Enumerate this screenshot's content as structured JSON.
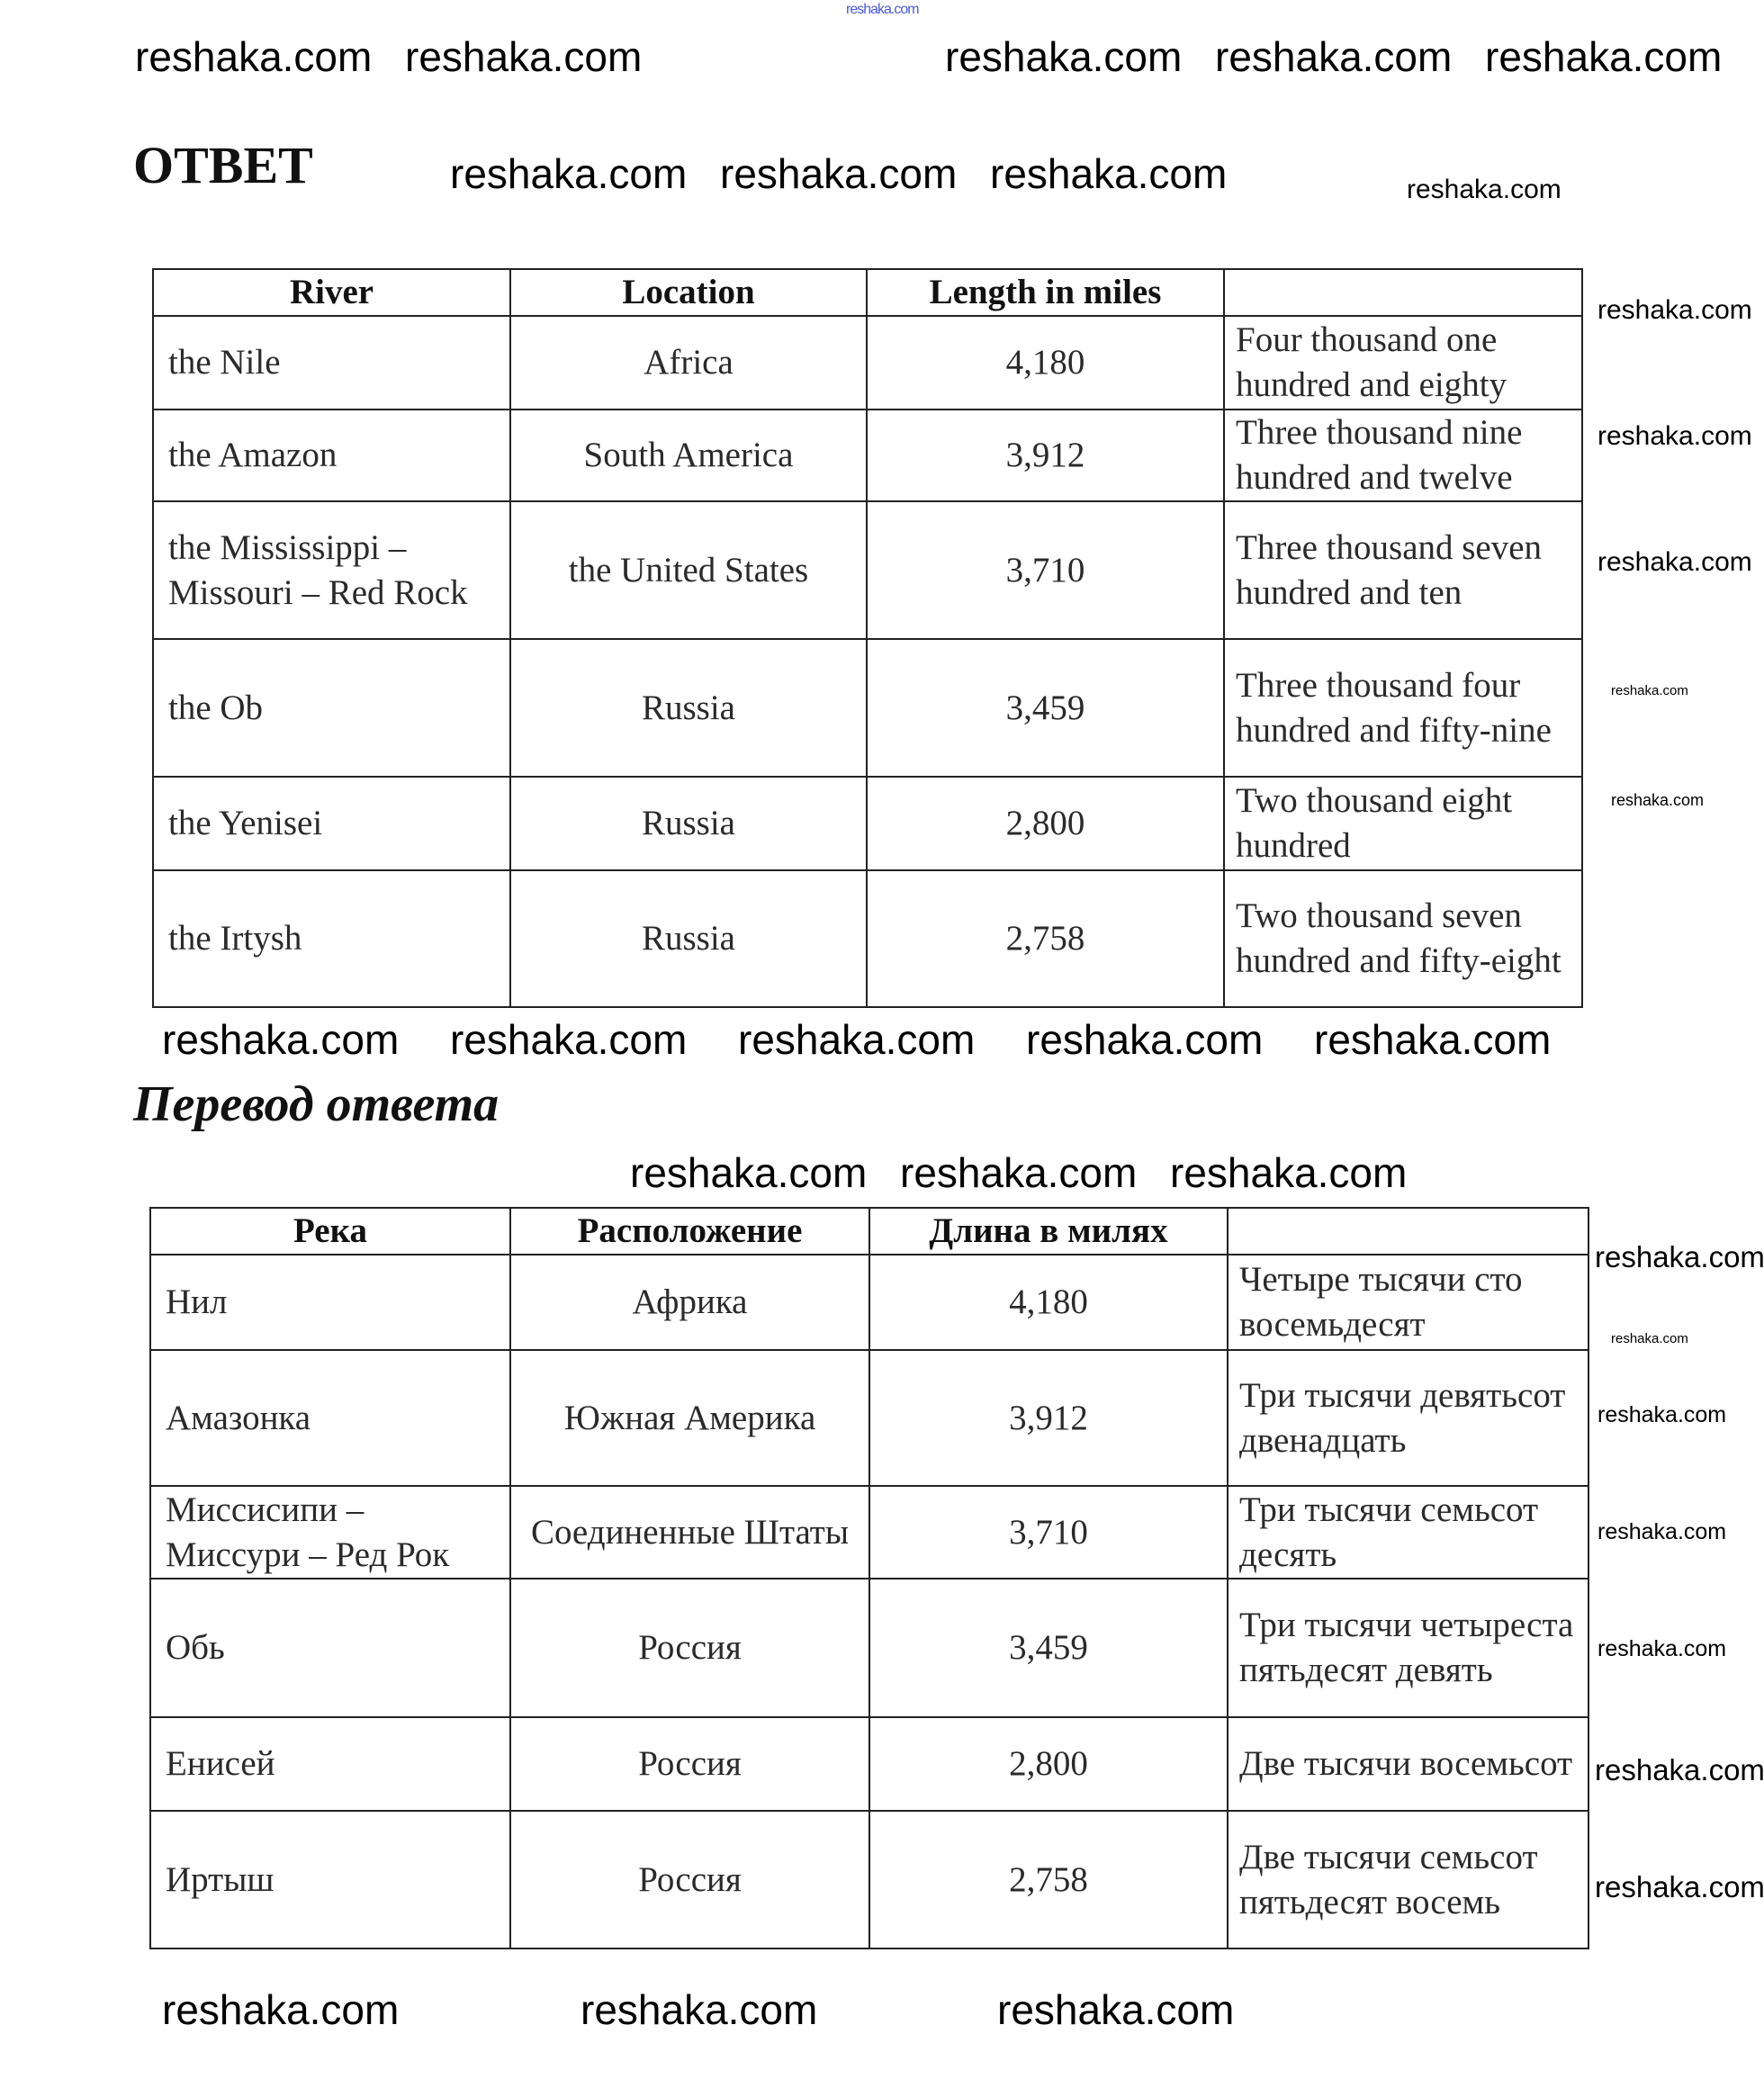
{
  "top_watermark": "reshaka.com",
  "heading_answer": "ОТВЕТ",
  "heading_translation": "Перевод ответа",
  "table_en": {
    "headers": [
      "River",
      "Location",
      "Length in miles",
      ""
    ],
    "rows": [
      [
        "the Nile",
        "Africa",
        "4,180",
        "Four thousand one hundred and eighty"
      ],
      [
        "the Amazon",
        "South America",
        "3,912",
        "Three thousand nine hundred and twelve"
      ],
      [
        "the Mississippi – Missouri – Red Rock",
        "the United States",
        "3,710",
        "Three thousand seven hundred and ten"
      ],
      [
        "the Ob",
        "Russia",
        "3,459",
        "Three thousand four hundred and fifty-nine"
      ],
      [
        "the Yenisei",
        "Russia",
        "2,800",
        "Two thousand eight hundred"
      ],
      [
        "the Irtysh",
        "Russia",
        "2,758",
        "Two thousand seven hundred and fifty-eight"
      ]
    ]
  },
  "table_ru": {
    "headers": [
      "Река",
      "Расположение",
      "Длина в милях",
      ""
    ],
    "rows": [
      [
        "Нил",
        "Африка",
        "4,180",
        "Четыре тысячи сто восемьдесят"
      ],
      [
        "Амазонка",
        "Южная Америка",
        "3,912",
        "Три тысячи девятьсот двенадцать"
      ],
      [
        "Миссисипи – Миссури – Ред Рок",
        "Соединенные Штаты",
        "3,710",
        "Три тысячи семьсот десять"
      ],
      [
        "Обь",
        "Россия",
        "3,459",
        "Три тысячи четыреста пятьдесят девять"
      ],
      [
        "Енисей",
        "Россия",
        "2,800",
        "Две тысячи восемьсот"
      ],
      [
        "Иртыш",
        "Россия",
        "2,758",
        "Две тысячи семьсот пятьдесят восемь"
      ]
    ]
  },
  "watermark": "reshaka.com"
}
